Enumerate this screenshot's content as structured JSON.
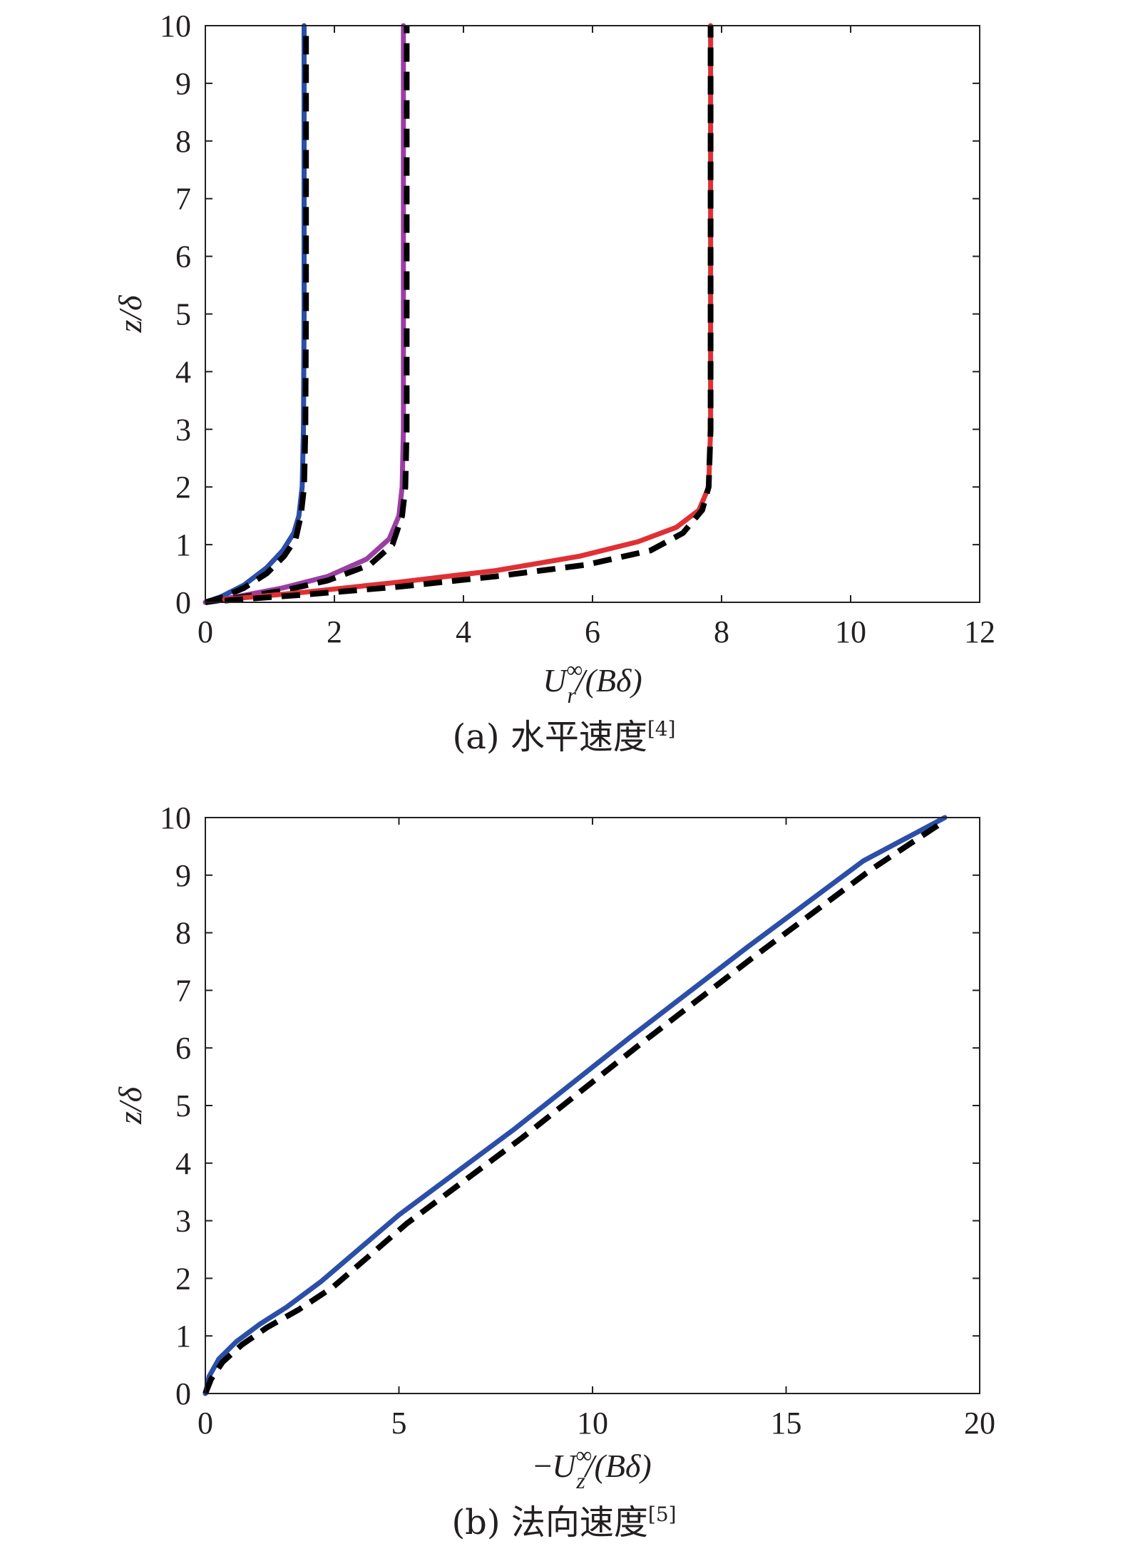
{
  "chart_data": [
    {
      "type": "line",
      "caption": "(a) 水平速度",
      "caption_ref": "[4]",
      "xlabel": {
        "prefix": "",
        "main": "U",
        "sub": "r",
        "sup": "∞",
        "suffix": "/(Bδ)"
      },
      "ylabel": "z/δ",
      "xlim": [
        0,
        12
      ],
      "ylim": [
        0,
        10
      ],
      "xticks": [
        "0",
        "2",
        "4",
        "6",
        "8",
        "10",
        "12"
      ],
      "yticks": [
        "0",
        "1",
        "2",
        "3",
        "4",
        "5",
        "6",
        "7",
        "8",
        "9",
        "10"
      ],
      "grid": false,
      "series": [
        {
          "color": "#2b4fa8",
          "style": "solid",
          "x": [
            0,
            0.25,
            0.6,
            0.95,
            1.2,
            1.37,
            1.45,
            1.5,
            1.52,
            1.53,
            1.53
          ],
          "y": [
            0,
            0.1,
            0.3,
            0.6,
            0.9,
            1.2,
            1.5,
            2.0,
            3.0,
            5.0,
            10
          ]
        },
        {
          "color": "#000000",
          "style": "dashed",
          "x": [
            0,
            0.25,
            0.6,
            0.95,
            1.22,
            1.4,
            1.48,
            1.53,
            1.55,
            1.56,
            1.56
          ],
          "y": [
            0,
            0.08,
            0.25,
            0.5,
            0.8,
            1.1,
            1.5,
            2.0,
            3.0,
            5.0,
            10
          ]
        },
        {
          "color": "#9b3ea3",
          "style": "solid",
          "x": [
            0,
            0.5,
            1.2,
            1.9,
            2.5,
            2.85,
            3.0,
            3.05,
            3.07,
            3.07,
            3.07
          ],
          "y": [
            0,
            0.1,
            0.25,
            0.45,
            0.75,
            1.1,
            1.5,
            2.0,
            3.0,
            5.0,
            10
          ]
        },
        {
          "color": "#000000",
          "style": "dashed",
          "x": [
            0,
            0.5,
            1.2,
            1.9,
            2.55,
            2.9,
            3.05,
            3.1,
            3.12,
            3.12,
            3.12
          ],
          "y": [
            0,
            0.08,
            0.2,
            0.38,
            0.65,
            1.0,
            1.5,
            2.0,
            3.0,
            5.0,
            10
          ]
        },
        {
          "color": "#e03035",
          "style": "solid",
          "x": [
            0.3,
            1.5,
            3.0,
            4.5,
            5.8,
            6.7,
            7.3,
            7.65,
            7.8,
            7.83,
            7.83,
            7.83
          ],
          "y": [
            0.05,
            0.17,
            0.35,
            0.55,
            0.8,
            1.05,
            1.3,
            1.6,
            2.0,
            3.0,
            5.0,
            10
          ]
        },
        {
          "color": "#000000",
          "style": "dashed",
          "x": [
            0.3,
            1.5,
            3.0,
            4.5,
            5.9,
            6.9,
            7.4,
            7.7,
            7.8,
            7.83,
            7.83,
            7.83
          ],
          "y": [
            0.03,
            0.13,
            0.27,
            0.45,
            0.65,
            0.9,
            1.2,
            1.6,
            2.0,
            3.0,
            5.0,
            10
          ]
        }
      ]
    },
    {
      "type": "line",
      "caption": "(b) 法向速度",
      "caption_ref": "[5]",
      "xlabel": {
        "prefix": "−",
        "main": "U",
        "sub": "z",
        "sup": "∞",
        "suffix": "/(Bδ)"
      },
      "ylabel": "z/δ",
      "xlim": [
        0,
        20
      ],
      "ylim": [
        0,
        10
      ],
      "xticks": [
        "0",
        "5",
        "10",
        "15",
        "20"
      ],
      "yticks": [
        "0",
        "1",
        "2",
        "3",
        "4",
        "5",
        "6",
        "7",
        "8",
        "9",
        "10"
      ],
      "grid": false,
      "series": [
        {
          "color": "#2b4fa8",
          "style": "solid",
          "x": [
            0,
            0.1,
            0.35,
            0.8,
            1.4,
            2.1,
            3.0,
            5.0,
            8.0,
            11.0,
            14.0,
            17.0,
            19.1
          ],
          "y": [
            0,
            0.3,
            0.6,
            0.9,
            1.2,
            1.5,
            1.95,
            3.1,
            4.6,
            6.2,
            7.75,
            9.25,
            10
          ]
        },
        {
          "color": "#000000",
          "style": "dashed",
          "x": [
            0,
            0.15,
            0.45,
            0.95,
            1.6,
            2.4,
            3.3,
            5.2,
            8.2,
            11.2,
            14.2,
            17.2,
            19.0
          ],
          "y": [
            0,
            0.25,
            0.55,
            0.85,
            1.15,
            1.45,
            1.85,
            2.95,
            4.45,
            6.05,
            7.6,
            9.1,
            9.9
          ]
        }
      ]
    }
  ]
}
